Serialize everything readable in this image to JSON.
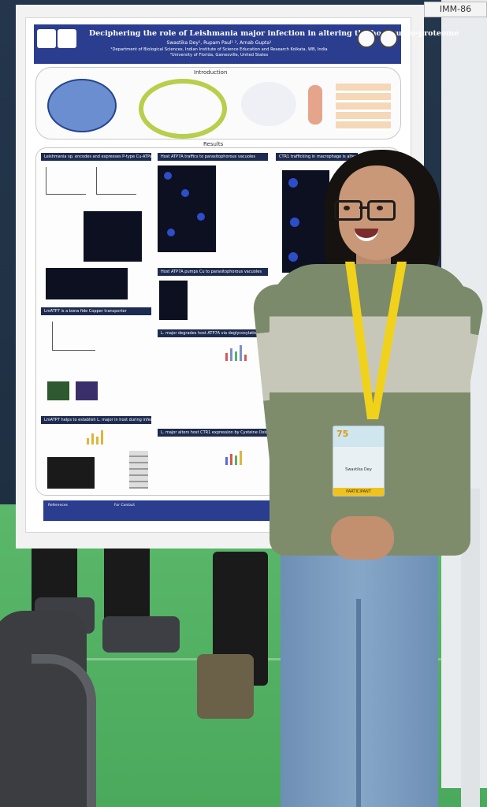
{
  "booth_tag": "IMM-86",
  "poster": {
    "title": "Deciphering the role of Leishmania major infection in altering the host cupro-proteome",
    "authors": "Swastika Dey¹, Rupam Paul¹ ², Arnab Gupta¹",
    "affiliations": [
      "¹Department of Biological Sciences, Indian Institute of Science Education and Research Kolkata, WB, India",
      "²University of Florida, Gainesville, United States"
    ],
    "intro_heading": "Introduction",
    "results_heading": "Results",
    "sections": [
      "Leishmania sp. encodes and expresses P-type Cu-ATPase",
      "Host ATP7A traffics to parasitophorous vacuoles",
      "CTR1 trafficking in macrophage is altered",
      "LmATP7 is a bona fide Copper transporter",
      "Host ATP7A pumps Cu to parasitophorous vacuoles",
      "L. major degrades host ATP7A via deglycosylation",
      "LmATP7 helps to establish L. major in host during infection",
      "L. major alters host CTR1 expression by Cysteine Oxidation"
    ],
    "footer": {
      "references_label": "References",
      "contact_label": "For Contact"
    }
  },
  "badge": {
    "number": "75",
    "name": "Swastika Dey",
    "role": "PARTICIPANT"
  },
  "colors": {
    "poster_header": "#2b3d8f",
    "floor": "#4aa95c",
    "sweater_dark": "#7b8a6b",
    "sweater_light": "#c7c7b9",
    "lanyard": "#f1d21b"
  }
}
